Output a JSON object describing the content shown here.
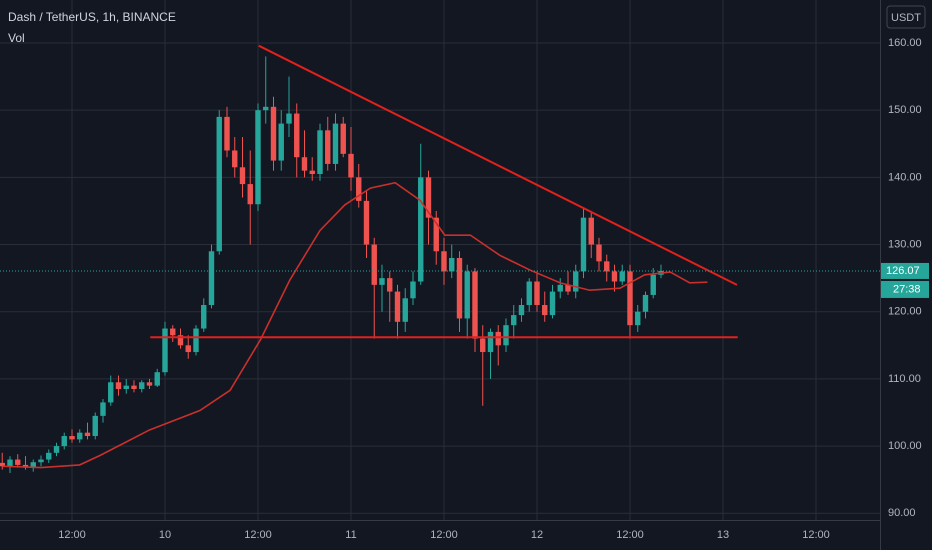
{
  "chart_data": {
    "type": "candlestick",
    "title": "Dash / TetherUS, 1h, BINANCE",
    "indicator": "Vol",
    "currency": "USDT",
    "up_color": "#26a69a",
    "down_color": "#ef5350",
    "grid": true,
    "xlim": [
      -21.29,
      92.26
    ],
    "ylim": [
      89,
      166.4
    ],
    "xticks": [
      {
        "value": -12,
        "label": "12:00"
      },
      {
        "value": 0,
        "label": "10"
      },
      {
        "value": 12,
        "label": "12:00"
      },
      {
        "value": 24,
        "label": "11"
      },
      {
        "value": 36,
        "label": "12:00"
      },
      {
        "value": 48,
        "label": "12"
      },
      {
        "value": 60,
        "label": "12:00"
      },
      {
        "value": 72,
        "label": "13"
      },
      {
        "value": 84,
        "label": "12:00"
      }
    ],
    "yticks": [
      {
        "value": 90,
        "label": "90.00"
      },
      {
        "value": 100,
        "label": "100.00"
      },
      {
        "value": 110,
        "label": "110.00"
      },
      {
        "value": 120,
        "label": "120.00"
      },
      {
        "value": 130,
        "label": "130.00"
      },
      {
        "value": 140,
        "label": "140.00"
      },
      {
        "value": 150,
        "label": "150.00"
      },
      {
        "value": 160,
        "label": "160.00"
      }
    ],
    "x": [
      -21,
      -20,
      -19,
      -18,
      -17,
      -16,
      -15,
      -14,
      -13,
      -12,
      -11,
      -10,
      -9,
      -8,
      -7,
      -6,
      -5,
      -4,
      -3,
      -2,
      -1,
      0,
      1,
      2,
      3,
      4,
      5,
      6,
      7,
      8,
      9,
      10,
      11,
      12,
      13,
      14,
      15,
      16,
      17,
      18,
      19,
      20,
      21,
      22,
      23,
      24,
      25,
      26,
      27,
      28,
      29,
      30,
      31,
      32,
      33,
      34,
      35,
      36,
      37,
      38,
      39,
      40,
      41,
      42,
      43,
      44,
      45,
      46,
      47,
      48,
      49,
      50,
      51,
      52,
      53,
      54,
      55,
      56,
      57,
      58,
      59,
      60,
      61,
      62,
      63,
      64
    ],
    "candles": [
      [
        97.5,
        99,
        96.5,
        97
      ],
      [
        97,
        98.5,
        96,
        98
      ],
      [
        98,
        98.8,
        96.8,
        97.2
      ],
      [
        97.2,
        98.5,
        96.5,
        96.8
      ],
      [
        96.8,
        98,
        96.2,
        97.6
      ],
      [
        97.6,
        98.6,
        97,
        98
      ],
      [
        98,
        99.5,
        97.5,
        99
      ],
      [
        99,
        100.5,
        98.5,
        100
      ],
      [
        100,
        102,
        99.5,
        101.5
      ],
      [
        101.5,
        102.5,
        100.5,
        101
      ],
      [
        101,
        102.5,
        100.5,
        102
      ],
      [
        102,
        103.5,
        101,
        101.5
      ],
      [
        101.5,
        105,
        101,
        104.5
      ],
      [
        104.5,
        107,
        103.5,
        106.5
      ],
      [
        106.5,
        110.5,
        106,
        109.5
      ],
      [
        109.5,
        110.5,
        107.5,
        108.5
      ],
      [
        108.5,
        110,
        107.8,
        109
      ],
      [
        109,
        109.8,
        108,
        108.5
      ],
      [
        108.5,
        109.8,
        108,
        109.5
      ],
      [
        109.5,
        110,
        108.5,
        109
      ],
      [
        109,
        111.5,
        108.8,
        111
      ],
      [
        111,
        118.5,
        110.5,
        117.5
      ],
      [
        117.5,
        118,
        115.5,
        116.5
      ],
      [
        116.5,
        117.5,
        114.5,
        115
      ],
      [
        115,
        116.5,
        113,
        114
      ],
      [
        114,
        118,
        113.5,
        117.5
      ],
      [
        117.5,
        122,
        117,
        121
      ],
      [
        121,
        130,
        120.5,
        129
      ],
      [
        129,
        150,
        128.5,
        149
      ],
      [
        149,
        150.5,
        143,
        144
      ],
      [
        144,
        146,
        140,
        141.5
      ],
      [
        141.5,
        146,
        137,
        139
      ],
      [
        139,
        144,
        130,
        136
      ],
      [
        136,
        151,
        135,
        150
      ],
      [
        150,
        158,
        148,
        150.5
      ],
      [
        150.5,
        152,
        141,
        142.5
      ],
      [
        142.5,
        150,
        141,
        148
      ],
      [
        148,
        155,
        146,
        149.5
      ],
      [
        149.5,
        151,
        140,
        143
      ],
      [
        143,
        147,
        140,
        141
      ],
      [
        141,
        143,
        139.5,
        140.5
      ],
      [
        140.5,
        148,
        139.5,
        147
      ],
      [
        147,
        149,
        141,
        142
      ],
      [
        142,
        149.5,
        141,
        148
      ],
      [
        148,
        149,
        143,
        143.5
      ],
      [
        143.5,
        147.5,
        138,
        140
      ],
      [
        140,
        142,
        135.5,
        136.5
      ],
      [
        136.5,
        138,
        128,
        130
      ],
      [
        130,
        131,
        116,
        124
      ],
      [
        124,
        127,
        120,
        125
      ],
      [
        125,
        126,
        118.5,
        123
      ],
      [
        123,
        124,
        116,
        118.5
      ],
      [
        118.5,
        123.5,
        117,
        122
      ],
      [
        122,
        126,
        121,
        124.5
      ],
      [
        124.5,
        145,
        124,
        140
      ],
      [
        140,
        141,
        130,
        134
      ],
      [
        134,
        135,
        127,
        129
      ],
      [
        129,
        131,
        124,
        126
      ],
      [
        126,
        130,
        125,
        128
      ],
      [
        128,
        129,
        117,
        119
      ],
      [
        119,
        127,
        116,
        126
      ],
      [
        126,
        126.5,
        114,
        116
      ],
      [
        116,
        118,
        106,
        114
      ],
      [
        114,
        117.5,
        110,
        117
      ],
      [
        117,
        118,
        112,
        115
      ],
      [
        115,
        119,
        114,
        118
      ],
      [
        118,
        121,
        116,
        119.5
      ],
      [
        119.5,
        122,
        118.5,
        121
      ],
      [
        121,
        125,
        120,
        124.5
      ],
      [
        124.5,
        126,
        120,
        121
      ],
      [
        121,
        123,
        118.5,
        119.5
      ],
      [
        119.5,
        124,
        119,
        123
      ],
      [
        123,
        125,
        122,
        124
      ],
      [
        124,
        126,
        122.5,
        123
      ],
      [
        123,
        127,
        122,
        126
      ],
      [
        126,
        135.5,
        125,
        134
      ],
      [
        134,
        135,
        128,
        130
      ],
      [
        130,
        131,
        126,
        127.5
      ],
      [
        127.5,
        128.5,
        124.5,
        126
      ],
      [
        126,
        127,
        123,
        124.5
      ],
      [
        124.5,
        127,
        124,
        126
      ],
      [
        126,
        127,
        116,
        118
      ],
      [
        118,
        121,
        117,
        120
      ],
      [
        120,
        123,
        119,
        122.5
      ],
      [
        122.5,
        126.5,
        122,
        125.5
      ],
      [
        125.5,
        127,
        125,
        126.07
      ]
    ],
    "moving_average": {
      "color": "#c9302c",
      "x": [
        -21,
        -16,
        -11,
        -8.4,
        -2,
        4.5,
        8.4,
        12.3,
        16.1,
        20,
        23.2,
        26.5,
        29.7,
        32.9,
        36.1,
        39.4,
        43.2,
        47.1,
        51,
        54.8,
        58.7,
        61.9,
        65.2,
        67.7,
        70
      ],
      "values": [
        97,
        96.8,
        97.2,
        98.6,
        102.4,
        105.3,
        108.3,
        115.8,
        124.7,
        132.1,
        135.9,
        138.4,
        139.2,
        136.6,
        131.4,
        131.4,
        128.4,
        126.2,
        124.3,
        123.2,
        123.5,
        125.5,
        125.9,
        124.3,
        124.4
      ]
    },
    "trendlines": [
      {
        "color": "#e3201c",
        "x": [
          12.1,
          73.8
        ],
        "values": [
          159.6,
          124
        ]
      },
      {
        "color": "#e3201c",
        "x": [
          -1.9,
          73.9
        ],
        "values": [
          116.2,
          116.2
        ]
      }
    ],
    "last_price": 126.07,
    "countdown": "27:38"
  }
}
